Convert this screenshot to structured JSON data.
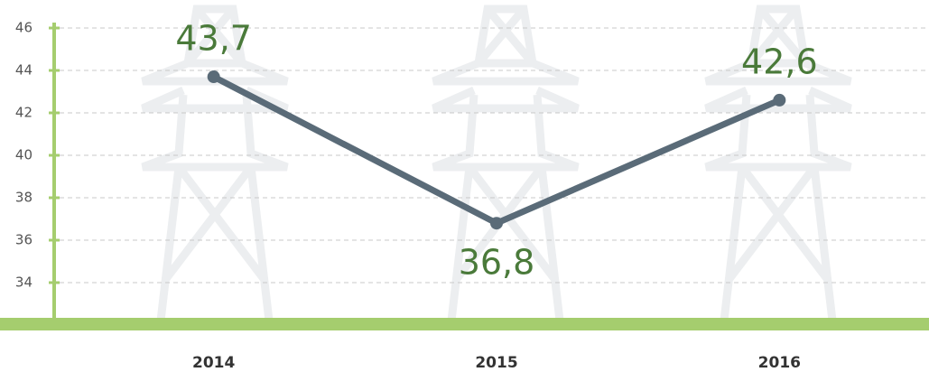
{
  "chart_data": {
    "type": "line",
    "categories": [
      "2014",
      "2015",
      "2016"
    ],
    "values": [
      43.7,
      36.8,
      42.6
    ],
    "value_labels": [
      "43,7",
      "36,8",
      "42,6"
    ],
    "color": "#5a6b78",
    "ylim": [
      32,
      46
    ],
    "yticks": [
      34,
      36,
      38,
      40,
      42,
      44,
      46
    ],
    "grid": true
  }
}
